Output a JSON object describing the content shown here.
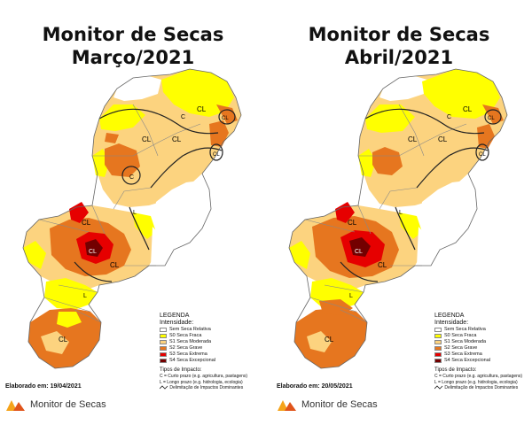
{
  "panels": [
    {
      "title_line1": "Monitor de Secas",
      "title_line2": "Março/2021",
      "elaborated": "Elaborado em: 19/04/2021"
    },
    {
      "title_line1": "Monitor de Secas",
      "title_line2": "Abril/2021",
      "elaborated": "Elaborado em: 20/05/2021"
    }
  ],
  "legend": {
    "title": "LEGENDA",
    "intensity_label": "Intensidade:",
    "items": [
      {
        "label": "Sem Seca Relativa",
        "color": "#ffffff"
      },
      {
        "label": "S0 Seca Fraca",
        "color": "#ffff00"
      },
      {
        "label": "S1 Seca Moderada",
        "color": "#fcd37f"
      },
      {
        "label": "S2 Seca Grave",
        "color": "#e6761f"
      },
      {
        "label": "S3 Seca Extrema",
        "color": "#e60000"
      },
      {
        "label": "S4 Seca Excepcional",
        "color": "#730000"
      }
    ],
    "impact_title": "Tipos de Impacto:",
    "impact_short": "C = Curto prazo (e.g. agricultura, pastagens)",
    "impact_long": "L = Longo prazo (e.g. hidrologia, ecologia)",
    "impact_line": "Delimitação de Impactos Dominantes"
  },
  "map_labels": {
    "cl": "CL",
    "c": "C",
    "l": "L"
  },
  "brand": {
    "name": "Monitor de Secas",
    "colors": [
      "#f5a31a",
      "#e0541b"
    ]
  }
}
